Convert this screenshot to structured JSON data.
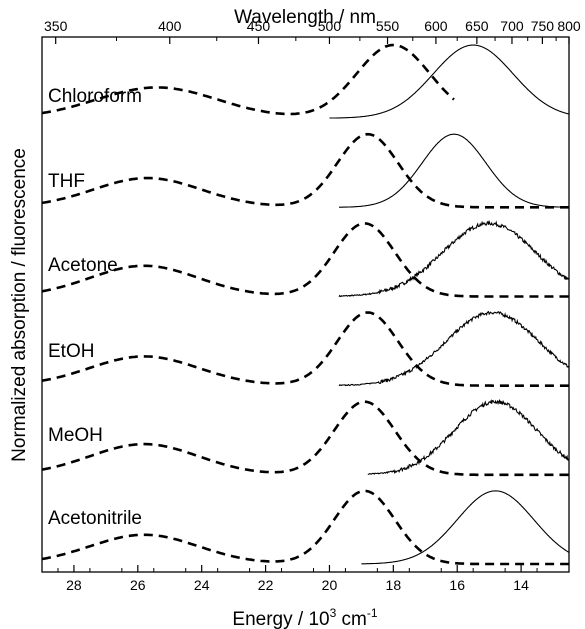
{
  "chart_data": {
    "type": "line",
    "xlabel": "Energy / 10",
    "xlabel_exp": "3",
    "xlabel_unit": " cm",
    "xlabel_unit_exp": "-1",
    "ylabel": "Normalized absorption / fluorescence",
    "top_xlabel": "Wavelength / nm",
    "xlim": [
      29,
      12.5
    ],
    "x_ticks": [
      28,
      26,
      24,
      22,
      20,
      18,
      16,
      14
    ],
    "top_ticks": [
      350,
      400,
      450,
      500,
      550,
      600,
      650,
      700,
      750,
      800
    ],
    "grid": false,
    "panels": [
      {
        "solvent": "Chloroform",
        "absorption": {
          "peaks": [
            [
              25.4,
              0.42,
              1.9
            ],
            [
              18.0,
              1.0,
              1.15
            ]
          ],
          "x": [
            29.0,
            16.1
          ],
          "stroke_dasharray": "dashed"
        },
        "fluorescence": {
          "center": 15.5,
          "width": 1.25,
          "noise": 0.0,
          "x": [
            20.0,
            12.5
          ]
        }
      },
      {
        "solvent": "THF",
        "absorption": {
          "peaks": [
            [
              25.7,
              0.4,
              1.7
            ],
            [
              18.8,
              1.0,
              0.95
            ]
          ],
          "x": [
            29.0,
            12.5
          ],
          "stroke_dasharray": "dashed"
        },
        "fluorescence": {
          "center": 16.1,
          "width": 1.0,
          "noise": 0.0,
          "x": [
            19.7,
            12.5
          ]
        }
      },
      {
        "solvent": "Acetone",
        "absorption": {
          "peaks": [
            [
              25.8,
              0.42,
              1.7
            ],
            [
              18.9,
              1.0,
              0.95
            ]
          ],
          "x": [
            29.0,
            12.5
          ],
          "stroke_dasharray": "dashed"
        },
        "fluorescence": {
          "center": 15.0,
          "width": 1.45,
          "noise": 0.05,
          "x": [
            19.7,
            12.5
          ]
        }
      },
      {
        "solvent": "EtOH",
        "absorption": {
          "peaks": [
            [
              25.8,
              0.4,
              1.7
            ],
            [
              18.8,
              1.0,
              0.95
            ]
          ],
          "x": [
            29.0,
            12.5
          ],
          "stroke_dasharray": "dashed"
        },
        "fluorescence": {
          "center": 14.9,
          "width": 1.45,
          "noise": 0.045,
          "x": [
            19.7,
            12.5
          ]
        }
      },
      {
        "solvent": "MeOH",
        "absorption": {
          "peaks": [
            [
              25.8,
              0.42,
              1.7
            ],
            [
              18.9,
              1.0,
              0.95
            ]
          ],
          "x": [
            29.0,
            12.5
          ],
          "stroke_dasharray": "dashed"
        },
        "fluorescence": {
          "center": 14.8,
          "width": 1.3,
          "noise": 0.05,
          "x": [
            18.8,
            12.5
          ]
        }
      },
      {
        "solvent": "Acetonitrile",
        "absorption": {
          "peaks": [
            [
              25.8,
              0.4,
              1.7
            ],
            [
              18.9,
              1.0,
              0.95
            ]
          ],
          "x": [
            29.0,
            12.5
          ],
          "stroke_dasharray": "dashed"
        },
        "fluorescence": {
          "center": 14.8,
          "width": 1.2,
          "noise": 0.0,
          "x": [
            19.0,
            12.5
          ]
        }
      }
    ]
  }
}
